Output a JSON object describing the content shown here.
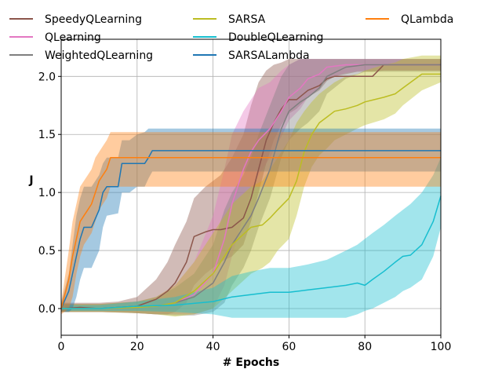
{
  "chart_data": {
    "type": "line",
    "xlabel": "# Epochs",
    "ylabel": "J",
    "xlim": [
      0,
      100
    ],
    "ylim": [
      -0.23,
      2.32
    ],
    "xticks": [
      0,
      20,
      40,
      60,
      80,
      100
    ],
    "yticks": [
      0.0,
      0.5,
      1.0,
      1.5,
      2.0
    ],
    "xtick_labels": [
      "0",
      "20",
      "40",
      "60",
      "80",
      "100"
    ],
    "ytick_labels": [
      "0.0",
      "0.5",
      "1.0",
      "1.5",
      "2.0"
    ],
    "grid": true,
    "legend_position": "top, above plot, 3 columns",
    "series": [
      {
        "name": "SpeedyQLearning",
        "color": "#8c564b",
        "x": [
          0,
          5,
          10,
          15,
          20,
          25,
          28,
          30,
          33,
          35,
          38,
          40,
          42,
          45,
          48,
          50,
          52,
          54,
          56,
          58,
          60,
          62,
          65,
          68,
          70,
          72,
          75,
          78,
          80,
          82,
          85,
          90,
          100
        ],
        "y": [
          0.0,
          0.01,
          0.0,
          0.01,
          0.02,
          0.08,
          0.15,
          0.22,
          0.4,
          0.62,
          0.66,
          0.68,
          0.68,
          0.7,
          0.78,
          0.95,
          1.2,
          1.45,
          1.6,
          1.72,
          1.8,
          1.8,
          1.88,
          1.92,
          1.98,
          2.0,
          2.0,
          2.0,
          2.0,
          2.0,
          2.1,
          2.1,
          2.1
        ],
        "lower": [
          -0.03,
          -0.03,
          -0.03,
          -0.03,
          -0.04,
          -0.05,
          -0.05,
          -0.03,
          0.05,
          0.2,
          0.3,
          0.35,
          0.4,
          0.45,
          0.55,
          0.75,
          1.0,
          1.25,
          1.45,
          1.58,
          1.68,
          1.72,
          1.82,
          1.88,
          1.96,
          2.0,
          2.02,
          2.04,
          2.04,
          2.04,
          2.05,
          2.05,
          2.05
        ],
        "upper": [
          0.05,
          0.05,
          0.05,
          0.06,
          0.1,
          0.25,
          0.4,
          0.55,
          0.75,
          0.95,
          1.05,
          1.1,
          1.15,
          1.3,
          1.5,
          1.75,
          1.95,
          2.05,
          2.1,
          2.12,
          2.15,
          2.15,
          2.15,
          2.15,
          2.15,
          2.15,
          2.15,
          2.15,
          2.15,
          2.15,
          2.15,
          2.15,
          2.15
        ]
      },
      {
        "name": "QLearning",
        "color": "#e377c2",
        "x": [
          0,
          10,
          20,
          25,
          30,
          35,
          40,
          43,
          45,
          48,
          50,
          52,
          55,
          58,
          60,
          63,
          65,
          68,
          70,
          75,
          80,
          85,
          90,
          100
        ],
        "y": [
          0.0,
          0.0,
          0.01,
          0.02,
          0.05,
          0.12,
          0.3,
          0.6,
          0.9,
          1.2,
          1.35,
          1.45,
          1.55,
          1.7,
          1.82,
          1.9,
          1.98,
          2.02,
          2.08,
          2.1,
          2.1,
          2.1,
          2.1,
          2.1
        ],
        "lower": [
          -0.03,
          -0.03,
          -0.04,
          -0.05,
          -0.05,
          -0.05,
          0.0,
          0.2,
          0.45,
          0.8,
          1.0,
          1.15,
          1.3,
          1.48,
          1.62,
          1.72,
          1.82,
          1.9,
          1.98,
          2.03,
          2.05,
          2.05,
          2.05,
          2.05
        ],
        "upper": [
          0.04,
          0.04,
          0.06,
          0.1,
          0.2,
          0.4,
          0.8,
          1.2,
          1.5,
          1.7,
          1.8,
          1.9,
          1.95,
          2.05,
          2.1,
          2.15,
          2.15,
          2.15,
          2.15,
          2.15,
          2.15,
          2.15,
          2.15,
          2.15
        ]
      },
      {
        "name": "WeightedQLearning",
        "color": "#7f7f7f",
        "x": [
          0,
          10,
          20,
          25,
          30,
          35,
          40,
          43,
          45,
          48,
          50,
          52,
          55,
          58,
          60,
          63,
          65,
          68,
          70,
          75,
          80,
          85,
          90,
          100
        ],
        "y": [
          0.0,
          0.0,
          0.01,
          0.02,
          0.05,
          0.1,
          0.22,
          0.4,
          0.55,
          0.7,
          0.8,
          0.95,
          1.2,
          1.55,
          1.7,
          1.78,
          1.82,
          1.9,
          2.0,
          2.08,
          2.1,
          2.1,
          2.1,
          2.1
        ],
        "lower": [
          -0.03,
          -0.03,
          -0.04,
          -0.05,
          -0.06,
          -0.06,
          -0.03,
          0.05,
          0.2,
          0.35,
          0.5,
          0.7,
          0.95,
          1.3,
          1.45,
          1.55,
          1.6,
          1.7,
          1.85,
          1.98,
          2.04,
          2.04,
          2.04,
          2.04
        ],
        "upper": [
          0.04,
          0.04,
          0.06,
          0.1,
          0.18,
          0.3,
          0.55,
          0.85,
          1.0,
          1.15,
          1.3,
          1.5,
          1.75,
          2.0,
          2.1,
          2.15,
          2.15,
          2.15,
          2.15,
          2.15,
          2.15,
          2.15,
          2.15,
          2.15
        ]
      },
      {
        "name": "SARSA",
        "color": "#bcbd22",
        "x": [
          0,
          10,
          20,
          25,
          30,
          35,
          40,
          45,
          50,
          53,
          55,
          57,
          60,
          62,
          64,
          66,
          68,
          70,
          72,
          75,
          78,
          80,
          85,
          88,
          90,
          95,
          100
        ],
        "y": [
          0.0,
          0.0,
          0.01,
          0.02,
          0.05,
          0.15,
          0.3,
          0.55,
          0.7,
          0.72,
          0.78,
          0.85,
          0.95,
          1.1,
          1.35,
          1.5,
          1.6,
          1.65,
          1.7,
          1.72,
          1.75,
          1.78,
          1.82,
          1.85,
          1.9,
          2.02,
          2.02
        ],
        "lower": [
          -0.03,
          -0.03,
          -0.04,
          -0.05,
          -0.07,
          -0.05,
          0.0,
          0.15,
          0.3,
          0.35,
          0.4,
          0.5,
          0.6,
          0.8,
          1.05,
          1.22,
          1.32,
          1.38,
          1.45,
          1.5,
          1.55,
          1.58,
          1.63,
          1.68,
          1.75,
          1.88,
          1.95
        ],
        "upper": [
          0.04,
          0.04,
          0.06,
          0.1,
          0.2,
          0.4,
          0.65,
          0.9,
          1.05,
          1.1,
          1.2,
          1.3,
          1.45,
          1.6,
          1.7,
          1.78,
          1.85,
          1.9,
          1.95,
          2.0,
          2.02,
          2.05,
          2.1,
          2.12,
          2.15,
          2.18,
          2.18
        ]
      },
      {
        "name": "DoubleQLearning",
        "color": "#17becf",
        "x": [
          0,
          10,
          20,
          30,
          40,
          45,
          50,
          55,
          60,
          65,
          70,
          75,
          78,
          80,
          82,
          85,
          88,
          90,
          92,
          95,
          98,
          100
        ],
        "y": [
          0.0,
          0.0,
          0.02,
          0.03,
          0.06,
          0.1,
          0.12,
          0.14,
          0.14,
          0.16,
          0.18,
          0.2,
          0.22,
          0.2,
          0.25,
          0.32,
          0.4,
          0.45,
          0.46,
          0.55,
          0.75,
          0.97
        ],
        "lower": [
          -0.02,
          -0.02,
          -0.02,
          -0.03,
          -0.05,
          -0.08,
          -0.08,
          -0.08,
          -0.08,
          -0.08,
          -0.08,
          -0.08,
          -0.05,
          -0.02,
          0.0,
          0.05,
          0.1,
          0.15,
          0.18,
          0.25,
          0.45,
          0.7
        ],
        "upper": [
          0.03,
          0.03,
          0.06,
          0.1,
          0.18,
          0.28,
          0.32,
          0.35,
          0.35,
          0.38,
          0.42,
          0.5,
          0.55,
          0.6,
          0.65,
          0.72,
          0.8,
          0.85,
          0.9,
          1.0,
          1.15,
          1.3
        ]
      },
      {
        "name": "SARSALambda",
        "color": "#1f77b4",
        "x": [
          0,
          2,
          3,
          4,
          5,
          6,
          8,
          10,
          11,
          12,
          15,
          16,
          18,
          20,
          22,
          23,
          24,
          25,
          30,
          40,
          50,
          60,
          70,
          80,
          90,
          100
        ],
        "y": [
          0.0,
          0.15,
          0.3,
          0.45,
          0.6,
          0.7,
          0.7,
          0.85,
          1.0,
          1.05,
          1.05,
          1.25,
          1.25,
          1.25,
          1.25,
          1.3,
          1.36,
          1.36,
          1.36,
          1.36,
          1.36,
          1.36,
          1.36,
          1.36,
          1.36,
          1.36
        ],
        "lower": [
          -0.03,
          -0.03,
          0.0,
          0.1,
          0.25,
          0.35,
          0.35,
          0.5,
          0.7,
          0.8,
          0.82,
          1.0,
          1.0,
          1.05,
          1.05,
          1.12,
          1.18,
          1.18,
          1.18,
          1.18,
          1.18,
          1.18,
          1.18,
          1.18,
          1.18,
          1.18
        ],
        "upper": [
          0.05,
          0.3,
          0.55,
          0.8,
          0.95,
          1.05,
          1.05,
          1.15,
          1.25,
          1.3,
          1.3,
          1.45,
          1.45,
          1.5,
          1.52,
          1.55,
          1.55,
          1.55,
          1.55,
          1.55,
          1.55,
          1.55,
          1.55,
          1.55,
          1.55,
          1.55
        ]
      },
      {
        "name": "QLambda",
        "color": "#ff7f0e",
        "x": [
          0,
          2,
          3,
          4,
          5,
          6,
          7,
          8,
          9,
          10,
          11,
          12,
          13,
          15,
          20,
          30,
          40,
          50,
          60,
          70,
          80,
          90,
          100
        ],
        "y": [
          0.0,
          0.25,
          0.45,
          0.6,
          0.75,
          0.8,
          0.85,
          0.9,
          1.0,
          1.1,
          1.15,
          1.2,
          1.3,
          1.3,
          1.3,
          1.3,
          1.3,
          1.3,
          1.3,
          1.3,
          1.3,
          1.3,
          1.3
        ],
        "lower": [
          -0.05,
          0.0,
          0.1,
          0.3,
          0.45,
          0.55,
          0.6,
          0.65,
          0.75,
          0.85,
          0.9,
          0.95,
          1.05,
          1.05,
          1.05,
          1.05,
          1.05,
          1.05,
          1.05,
          1.05,
          1.05,
          1.05,
          1.05
        ],
        "upper": [
          0.05,
          0.5,
          0.75,
          0.9,
          1.05,
          1.1,
          1.15,
          1.2,
          1.3,
          1.35,
          1.4,
          1.45,
          1.52,
          1.52,
          1.52,
          1.52,
          1.52,
          1.52,
          1.52,
          1.52,
          1.52,
          1.52,
          1.52
        ]
      }
    ]
  }
}
